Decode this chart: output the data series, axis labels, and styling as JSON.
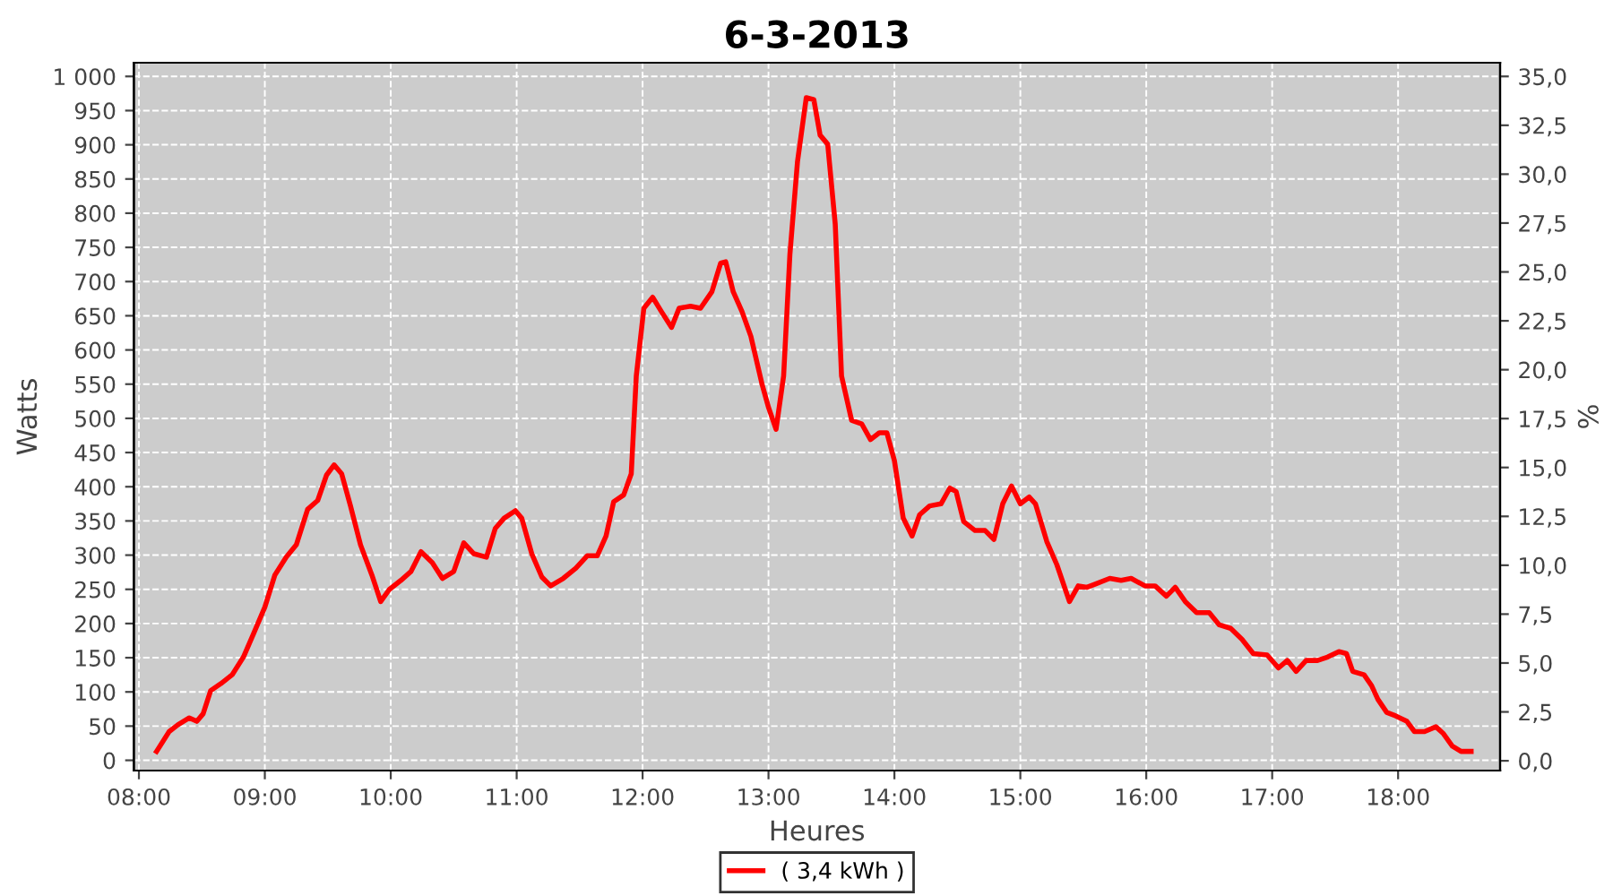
{
  "chart_data": {
    "type": "line",
    "title": "6-3-2013",
    "xlabel": "Heures",
    "ylabel": "Watts",
    "y2label": "%",
    "xlim": [
      7.96,
      18.81
    ],
    "xticks": [
      {
        "value": 8,
        "label": "08:00"
      },
      {
        "value": 9,
        "label": "09:00"
      },
      {
        "value": 10,
        "label": "10:00"
      },
      {
        "value": 11,
        "label": "11:00"
      },
      {
        "value": 12,
        "label": "12:00"
      },
      {
        "value": 13,
        "label": "13:00"
      },
      {
        "value": 14,
        "label": "14:00"
      },
      {
        "value": 15,
        "label": "15:00"
      },
      {
        "value": 16,
        "label": "16:00"
      },
      {
        "value": 17,
        "label": "17:00"
      },
      {
        "value": 18,
        "label": "18:00"
      }
    ],
    "ylim": [
      -15,
      1020
    ],
    "yticks": [
      0,
      50,
      100,
      150,
      200,
      250,
      300,
      350,
      400,
      450,
      500,
      550,
      600,
      650,
      700,
      750,
      800,
      850,
      900,
      950,
      {
        "value": 1000,
        "label": "1 000"
      }
    ],
    "y2lim": [
      -0.5,
      35.7
    ],
    "y2ticks": [
      {
        "value": 0,
        "label": "0,0"
      },
      {
        "value": 2.5,
        "label": "2,5"
      },
      {
        "value": 5,
        "label": "5,0"
      },
      {
        "value": 7.5,
        "label": "7,5"
      },
      {
        "value": 10,
        "label": "10,0"
      },
      {
        "value": 12.5,
        "label": "12,5"
      },
      {
        "value": 15,
        "label": "15,0"
      },
      {
        "value": 17.5,
        "label": "17,5"
      },
      {
        "value": 20,
        "label": "20,0"
      },
      {
        "value": 22.5,
        "label": "22,5"
      },
      {
        "value": 25,
        "label": "25,0"
      },
      {
        "value": 27.5,
        "label": "27,5"
      },
      {
        "value": 30,
        "label": "30,0"
      },
      {
        "value": 32.5,
        "label": "32,5"
      },
      {
        "value": 35,
        "label": "35,0"
      }
    ],
    "grid": true,
    "legend": "bottom",
    "marker": "none",
    "line_style": "solid",
    "series": [
      {
        "name": "( 3,4 kWh )",
        "color": "#ff0000",
        "x": [
          8.14,
          8.24,
          8.31,
          8.4,
          8.46,
          8.51,
          8.57,
          8.65,
          8.74,
          8.83,
          8.91,
          9.0,
          9.08,
          9.17,
          9.25,
          9.34,
          9.42,
          9.49,
          9.55,
          9.61,
          9.68,
          9.76,
          9.85,
          9.92,
          9.99,
          10.08,
          10.16,
          10.24,
          10.33,
          10.41,
          10.5,
          10.58,
          10.66,
          10.76,
          10.83,
          10.9,
          10.99,
          11.04,
          11.12,
          11.2,
          11.27,
          11.37,
          11.47,
          11.56,
          11.64,
          11.71,
          11.77,
          11.85,
          11.91,
          11.95,
          12.01,
          12.08,
          12.15,
          12.23,
          12.29,
          12.38,
          12.46,
          12.55,
          12.62,
          12.66,
          12.72,
          12.79,
          12.86,
          12.95,
          13.0,
          13.06,
          13.12,
          13.17,
          13.23,
          13.3,
          13.36,
          13.41,
          13.47,
          13.53,
          13.58,
          13.66,
          13.74,
          13.81,
          13.88,
          13.94,
          14.0,
          14.07,
          14.14,
          14.2,
          14.28,
          14.37,
          14.44,
          14.49,
          14.55,
          14.64,
          14.72,
          14.79,
          14.86,
          14.93,
          15.0,
          15.07,
          15.12,
          15.21,
          15.29,
          15.39,
          15.46,
          15.53,
          15.6,
          15.71,
          15.8,
          15.88,
          15.99,
          16.07,
          16.16,
          16.23,
          16.31,
          16.4,
          16.5,
          16.58,
          16.67,
          16.76,
          16.85,
          16.96,
          17.05,
          17.12,
          17.19,
          17.27,
          17.36,
          17.44,
          17.53,
          17.59,
          17.64,
          17.73,
          17.79,
          17.84,
          17.91,
          17.98,
          18.07,
          18.13,
          18.21,
          18.3,
          18.36,
          18.43,
          18.5,
          18.58
        ],
        "values": [
          13,
          42,
          52,
          62,
          57,
          68,
          102,
          112,
          125,
          151,
          185,
          224,
          271,
          297,
          315,
          367,
          380,
          417,
          432,
          419,
          372,
          315,
          271,
          232,
          250,
          263,
          276,
          305,
          289,
          266,
          276,
          318,
          302,
          297,
          339,
          354,
          365,
          354,
          302,
          268,
          255,
          266,
          281,
          299,
          299,
          328,
          378,
          388,
          419,
          562,
          661,
          677,
          656,
          633,
          661,
          664,
          661,
          685,
          727,
          729,
          685,
          656,
          620,
          549,
          516,
          484,
          562,
          740,
          875,
          969,
          966,
          914,
          901,
          784,
          562,
          497,
          492,
          469,
          479,
          479,
          438,
          354,
          328,
          359,
          372,
          375,
          398,
          393,
          349,
          336,
          336,
          323,
          375,
          401,
          375,
          385,
          375,
          320,
          286,
          232,
          255,
          253,
          258,
          266,
          263,
          266,
          255,
          255,
          240,
          253,
          232,
          216,
          216,
          198,
          193,
          177,
          156,
          154,
          135,
          146,
          130,
          146,
          146,
          151,
          159,
          156,
          130,
          125,
          109,
          89,
          70,
          65,
          57,
          42,
          42,
          49,
          39,
          21,
          13,
          13
        ]
      }
    ]
  }
}
